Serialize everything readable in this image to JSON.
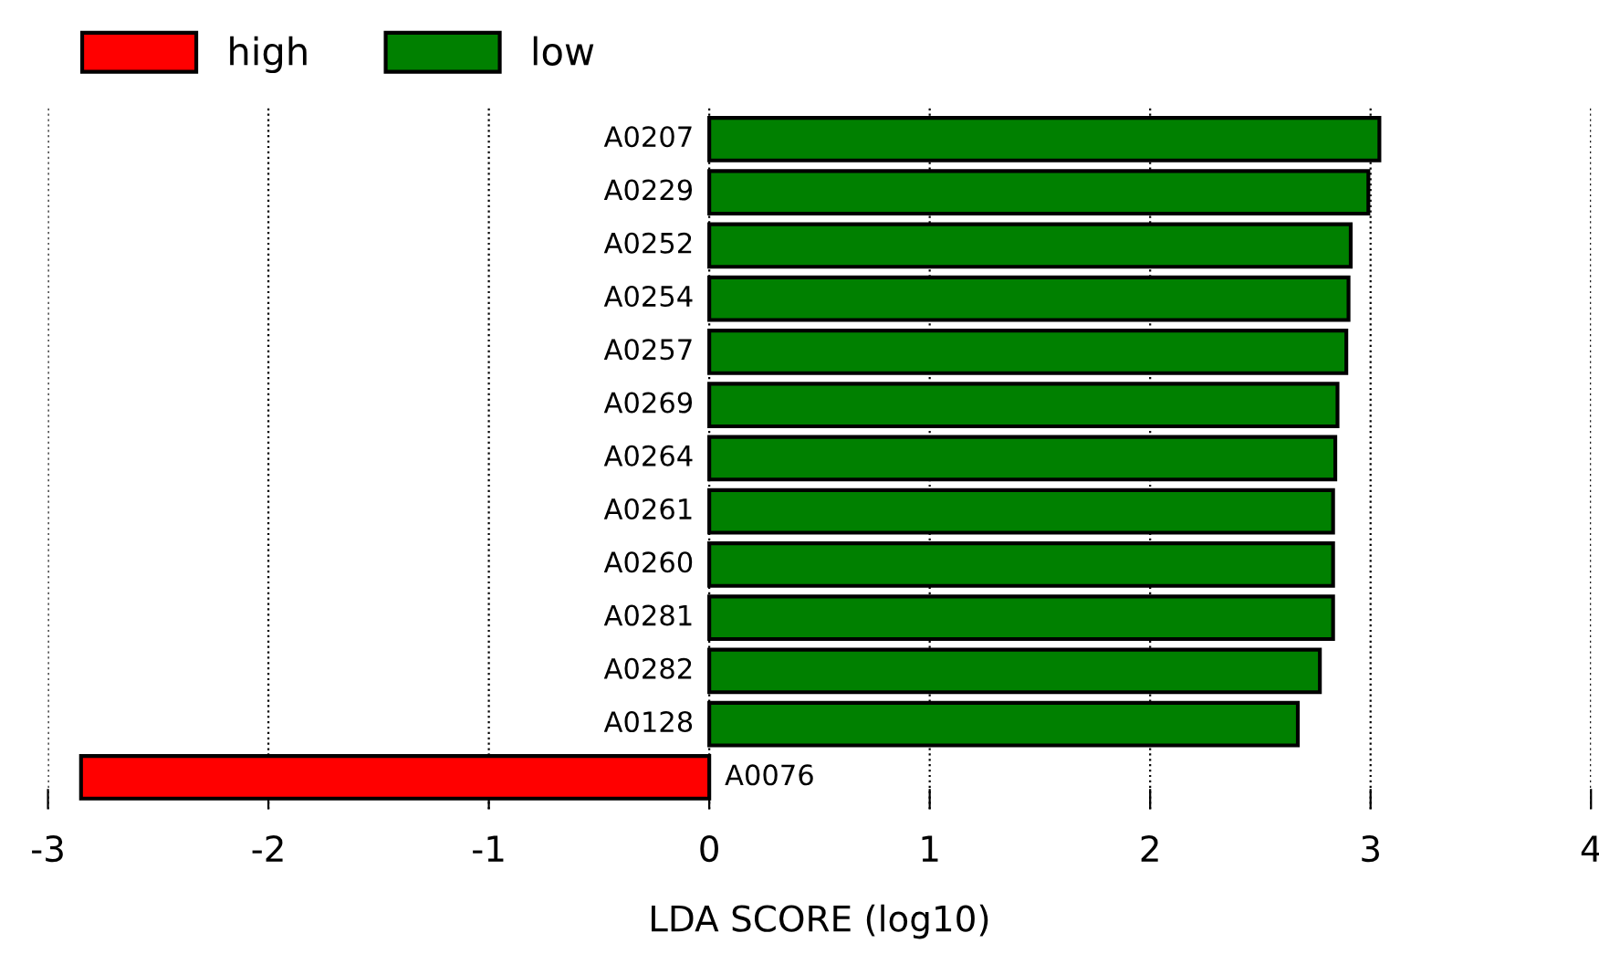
{
  "chart_data": {
    "type": "bar",
    "orientation": "horizontal",
    "xlabel": "LDA SCORE (log10)",
    "categories": [
      "A0207",
      "A0229",
      "A0252",
      "A0254",
      "A0257",
      "A0269",
      "A0264",
      "A0261",
      "A0260",
      "A0281",
      "A0282",
      "A0128",
      "A0076"
    ],
    "series": [
      {
        "name": "high",
        "color": "#ff0000",
        "values": [
          null,
          null,
          null,
          null,
          null,
          null,
          null,
          null,
          null,
          null,
          null,
          null,
          -2.85
        ]
      },
      {
        "name": "low",
        "color": "#008000",
        "values": [
          3.04,
          2.99,
          2.91,
          2.9,
          2.89,
          2.85,
          2.84,
          2.83,
          2.83,
          2.83,
          2.77,
          2.67,
          null
        ]
      }
    ],
    "xlim": [
      -3,
      4
    ],
    "xticks": [
      -3,
      -2,
      -1,
      0,
      1,
      2,
      3,
      4
    ],
    "grid": "x",
    "line_style": "dotted",
    "legend": "top left"
  }
}
